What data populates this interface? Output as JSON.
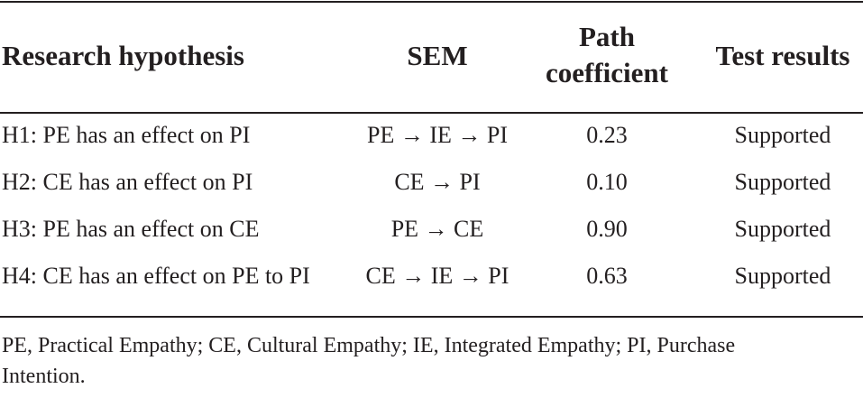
{
  "table": {
    "headers": [
      "Research hypothesis",
      "SEM",
      "Path coefficient",
      "Test results"
    ],
    "rows": [
      [
        "H1: PE has an effect on PI",
        "PE → IE → PI",
        "0.23",
        "Supported"
      ],
      [
        "H2: CE has an effect on PI",
        "CE → PI",
        "0.10",
        "Supported"
      ],
      [
        "H3: PE has an effect on CE",
        "PE → CE",
        "0.90",
        "Supported"
      ],
      [
        "H4: CE has an effect on PE to PI",
        "CE → IE → PI",
        "0.63",
        "Supported"
      ]
    ],
    "footnote": "PE, Practical Empathy; CE, Cultural Empathy; IE, Integrated Empathy; PI, Purchase Intention."
  }
}
